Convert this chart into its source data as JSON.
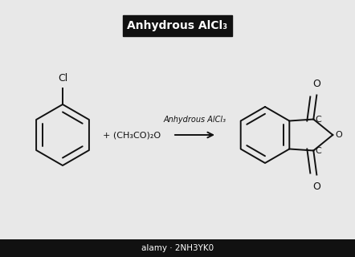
{
  "bg_color": "#e8e8e8",
  "title_text": "Anhydrous AlCl₃",
  "title_bg": "#111111",
  "title_fg": "#ffffff",
  "arrow_label": "Anhydrous AlCl₃",
  "plus_text": "+ (CH₃CO)₂O",
  "cl_label": "Cl",
  "line_color": "#111111",
  "text_color": "#111111",
  "watermark_text": "alamy · 2NH3YK0",
  "watermark_bg": "#111111"
}
